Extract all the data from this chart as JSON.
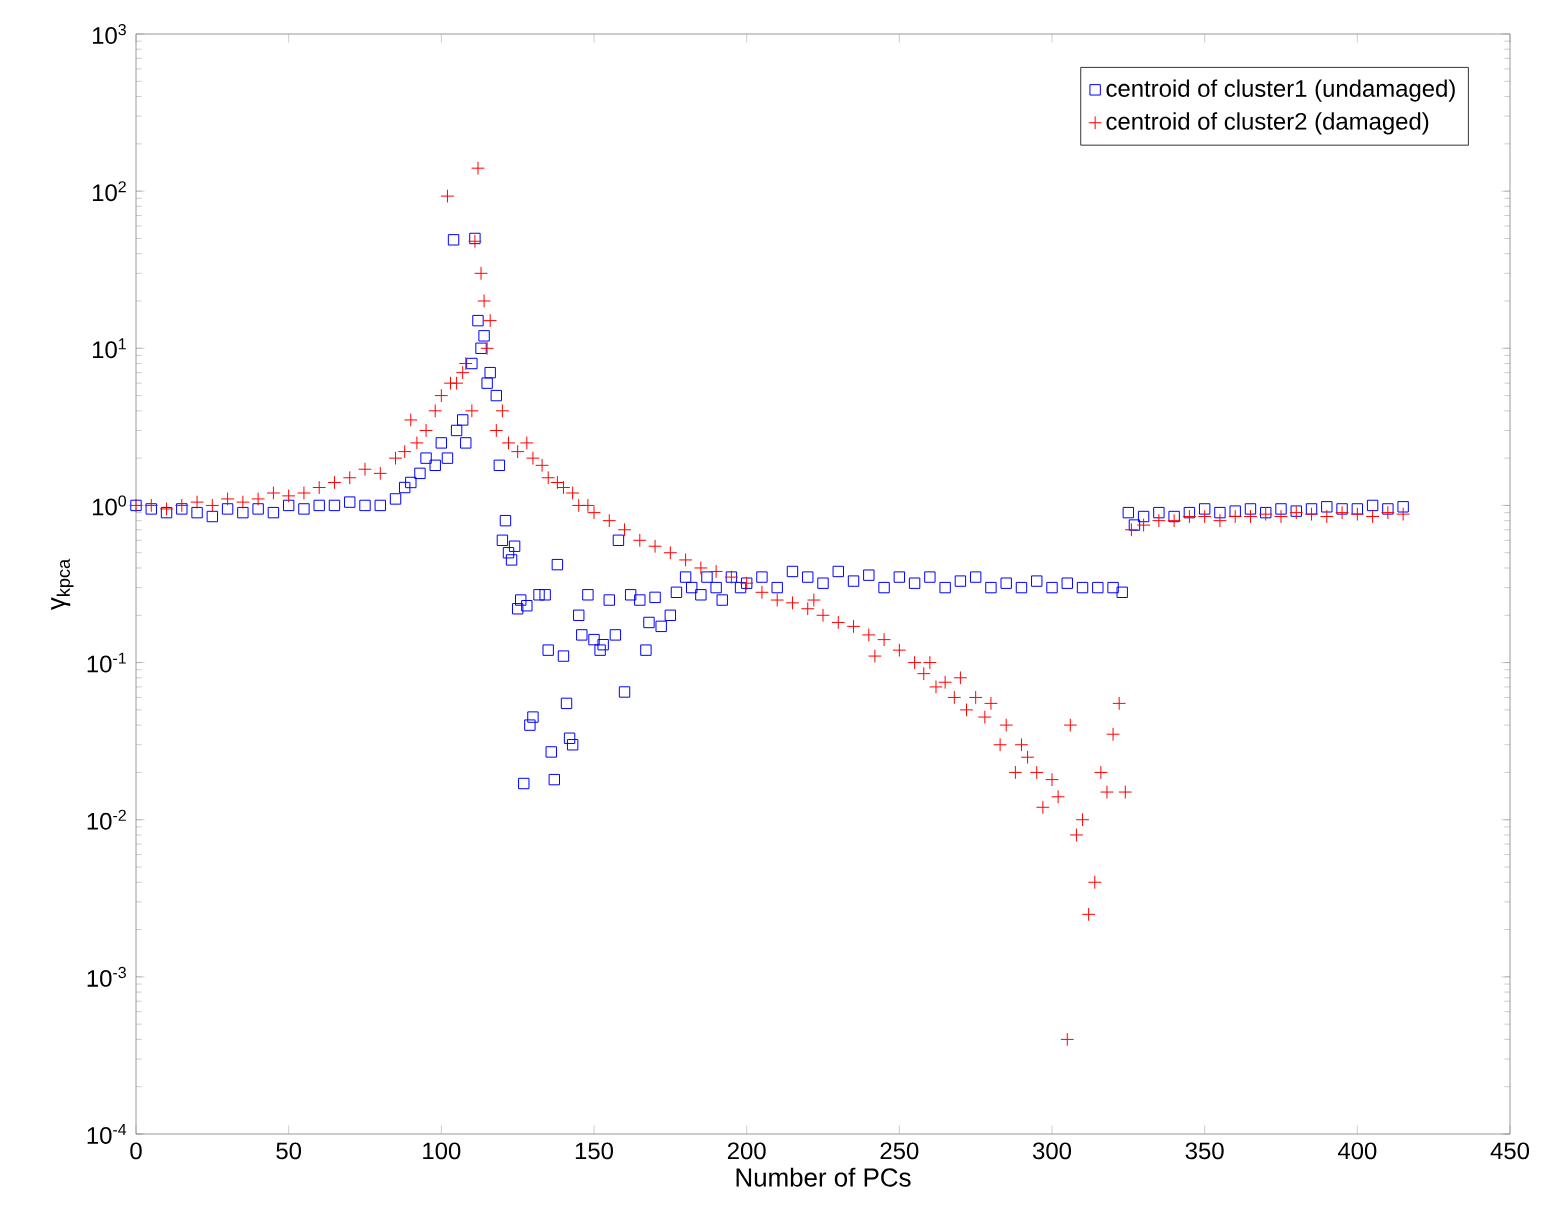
{
  "chart_data": {
    "type": "scatter",
    "xlabel": "Number of PCs",
    "ylabel": "γ$_{kpca}$",
    "xlim": [
      0,
      450
    ],
    "xticks": [
      0,
      50,
      100,
      150,
      200,
      250,
      300,
      350,
      400,
      450
    ],
    "ylim": [
      0.0001,
      1000
    ],
    "yticks": [
      {
        "value": 0.0001,
        "label": "10$^{-4}$"
      },
      {
        "value": 0.001,
        "label": "10$^{-3}$"
      },
      {
        "value": 0.01,
        "label": "10$^{-2}$"
      },
      {
        "value": 0.1,
        "label": "10$^{-1}$"
      },
      {
        "value": 1,
        "label": "10$^{0}$"
      },
      {
        "value": 10,
        "label": "10$^{1}$"
      },
      {
        "value": 100,
        "label": "10$^{2}$"
      },
      {
        "value": 1000,
        "label": "10$^{3}$"
      }
    ],
    "log": "y",
    "grid": false,
    "legend": "top right",
    "series": [
      {
        "name": "centroid of cluster1 (undamaged)",
        "color": "#0000ff",
        "marker": "square",
        "x": [
          0,
          5,
          10,
          15,
          20,
          25,
          30,
          35,
          40,
          45,
          50,
          55,
          60,
          65,
          70,
          75,
          80,
          85,
          88,
          90,
          93,
          95,
          98,
          100,
          102,
          104,
          105,
          107,
          108,
          110,
          111,
          112,
          113,
          114,
          115,
          116,
          118,
          119,
          120,
          121,
          122,
          123,
          124,
          125,
          126,
          127,
          128,
          129,
          130,
          132,
          134,
          135,
          136,
          137,
          138,
          140,
          141,
          142,
          143,
          145,
          146,
          148,
          150,
          152,
          153,
          155,
          157,
          158,
          160,
          162,
          165,
          167,
          168,
          170,
          172,
          175,
          177,
          180,
          182,
          185,
          187,
          190,
          192,
          195,
          198,
          200,
          205,
          210,
          215,
          220,
          225,
          230,
          235,
          240,
          245,
          250,
          255,
          260,
          265,
          270,
          275,
          280,
          285,
          290,
          295,
          300,
          305,
          310,
          315,
          320,
          323,
          325,
          327,
          330,
          335,
          340,
          345,
          350,
          355,
          360,
          365,
          370,
          375,
          380,
          385,
          390,
          395,
          400,
          405,
          410,
          415
        ],
        "values": [
          1.0,
          0.95,
          0.9,
          0.95,
          0.9,
          0.85,
          0.95,
          0.9,
          0.95,
          0.9,
          1.0,
          0.95,
          1.0,
          1.0,
          1.05,
          1.0,
          1.0,
          1.1,
          1.3,
          1.4,
          1.6,
          2.0,
          1.8,
          2.5,
          2.0,
          49,
          3,
          3.5,
          2.5,
          8,
          50,
          15,
          10,
          12,
          6,
          7,
          5,
          1.8,
          0.6,
          0.8,
          0.5,
          0.45,
          0.55,
          0.22,
          0.25,
          0.017,
          0.23,
          0.04,
          0.045,
          0.27,
          0.27,
          0.12,
          0.027,
          0.018,
          0.42,
          0.11,
          0.055,
          0.033,
          0.03,
          0.2,
          0.15,
          0.27,
          0.14,
          0.12,
          0.13,
          0.25,
          0.15,
          0.6,
          0.065,
          0.27,
          0.25,
          0.12,
          0.18,
          0.26,
          0.17,
          0.2,
          0.28,
          0.35,
          0.3,
          0.27,
          0.35,
          0.3,
          0.25,
          0.35,
          0.3,
          0.32,
          0.35,
          0.3,
          0.38,
          0.35,
          0.32,
          0.38,
          0.33,
          0.36,
          0.3,
          0.35,
          0.32,
          0.35,
          0.3,
          0.33,
          0.35,
          0.3,
          0.32,
          0.3,
          0.33,
          0.3,
          0.32,
          0.3,
          0.3,
          0.3,
          0.28,
          0.9,
          0.75,
          0.85,
          0.9,
          0.85,
          0.9,
          0.95,
          0.9,
          0.92,
          0.95,
          0.9,
          0.95,
          0.92,
          0.95,
          0.98,
          0.95,
          0.95,
          1.0,
          0.95,
          0.98
        ]
      },
      {
        "name": "centroid of cluster2 (damaged)",
        "color": "#ff0000",
        "marker": "cross",
        "x": [
          0,
          5,
          10,
          15,
          20,
          25,
          30,
          35,
          40,
          45,
          50,
          55,
          60,
          65,
          70,
          75,
          80,
          85,
          88,
          90,
          92,
          95,
          98,
          100,
          102,
          103,
          105,
          107,
          108,
          110,
          111,
          112,
          113,
          114,
          115,
          116,
          118,
          120,
          122,
          125,
          128,
          130,
          133,
          135,
          138,
          140,
          143,
          145,
          148,
          150,
          155,
          160,
          165,
          170,
          175,
          180,
          185,
          190,
          195,
          200,
          205,
          210,
          215,
          220,
          222,
          225,
          230,
          235,
          240,
          242,
          245,
          250,
          255,
          258,
          260,
          262,
          265,
          268,
          270,
          272,
          275,
          278,
          280,
          283,
          285,
          288,
          290,
          292,
          295,
          297,
          300,
          302,
          305,
          306,
          308,
          310,
          312,
          314,
          316,
          318,
          320,
          322,
          324,
          326,
          330,
          335,
          340,
          345,
          350,
          355,
          360,
          365,
          370,
          375,
          380,
          385,
          390,
          395,
          400,
          405,
          410,
          415
        ],
        "values": [
          1.0,
          1.0,
          0.95,
          1.0,
          1.05,
          1.0,
          1.1,
          1.05,
          1.1,
          1.2,
          1.15,
          1.2,
          1.3,
          1.4,
          1.5,
          1.7,
          1.6,
          2.0,
          2.2,
          3.5,
          2.5,
          3.0,
          4.0,
          5,
          93,
          6,
          6,
          7,
          8,
          4,
          48,
          140,
          30,
          20,
          10,
          15,
          3,
          4,
          2.5,
          2.2,
          2.5,
          2.0,
          1.8,
          1.5,
          1.4,
          1.3,
          1.2,
          1.0,
          1.0,
          0.9,
          0.8,
          0.7,
          0.6,
          0.55,
          0.5,
          0.45,
          0.4,
          0.38,
          0.35,
          0.32,
          0.28,
          0.25,
          0.24,
          0.22,
          0.25,
          0.2,
          0.18,
          0.17,
          0.15,
          0.11,
          0.14,
          0.12,
          0.1,
          0.085,
          0.1,
          0.07,
          0.075,
          0.06,
          0.08,
          0.05,
          0.06,
          0.045,
          0.055,
          0.03,
          0.04,
          0.02,
          0.03,
          0.025,
          0.02,
          0.012,
          0.018,
          0.014,
          0.0004,
          0.04,
          0.008,
          0.01,
          0.0025,
          0.004,
          0.02,
          0.015,
          0.035,
          0.055,
          0.015,
          0.7,
          0.75,
          0.8,
          0.8,
          0.85,
          0.85,
          0.8,
          0.85,
          0.85,
          0.88,
          0.85,
          0.9,
          0.88,
          0.85,
          0.9,
          0.88,
          0.85,
          0.9,
          0.88
        ]
      }
    ]
  }
}
